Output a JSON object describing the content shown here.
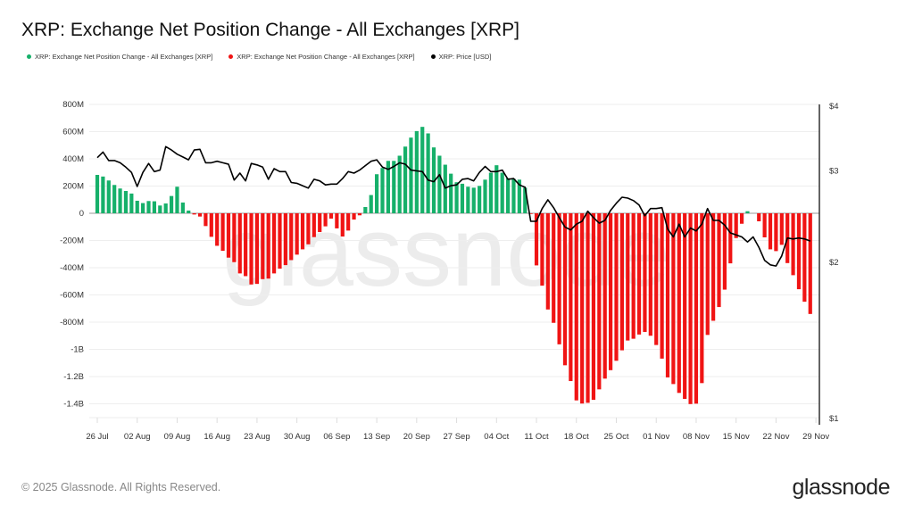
{
  "title": "XRP: Exchange Net Position Change - All Exchanges [XRP]",
  "legend": [
    {
      "label": "XRP: Exchange Net Position Change - All Exchanges [XRP]",
      "color": "#16b06a"
    },
    {
      "label": "XRP: Exchange Net Position Change - All Exchanges [XRP]",
      "color": "#f01414"
    },
    {
      "label": "XRP: Price [USD]",
      "color": "#000000"
    }
  ],
  "footer": "© 2025 Glassnode. All Rights Reserved.",
  "logo": "glassnode",
  "watermark": "glassnode",
  "chart_data": {
    "type": "bar+line",
    "start_date": "26 Jul",
    "x_tick_labels": [
      "26 Jul",
      "02 Aug",
      "09 Aug",
      "16 Aug",
      "23 Aug",
      "30 Aug",
      "06 Sep",
      "13 Sep",
      "20 Sep",
      "27 Sep",
      "04 Oct",
      "11 Oct",
      "18 Oct",
      "25 Oct",
      "01 Nov",
      "08 Nov",
      "15 Nov",
      "22 Nov",
      "29 Nov"
    ],
    "left_axis": {
      "ticks": [
        "800M",
        "600M",
        "400M",
        "200M",
        "0",
        "-200M",
        "-400M",
        "-600M",
        "-800M",
        "-1B",
        "-1.2B",
        "-1.4B"
      ],
      "tick_values": [
        800,
        600,
        400,
        200,
        0,
        -200,
        -400,
        -600,
        -800,
        -1000,
        -1200,
        -1400
      ],
      "unit": "M XRP",
      "range": [
        -1480,
        800
      ]
    },
    "right_axis": {
      "scale": "log",
      "ticks": [
        "$4",
        "$3",
        "$2",
        "$1"
      ],
      "tick_values": [
        4,
        3,
        2,
        1
      ],
      "range": [
        1,
        4
      ]
    },
    "positive_color": "#16b06a",
    "negative_color": "#f01414",
    "price_color": "#000000",
    "net_position_change_millions": [
      282,
      270,
      241,
      208,
      182,
      164,
      145,
      92,
      75,
      90,
      88,
      57,
      72,
      127,
      195,
      79,
      20,
      -9,
      -24,
      -94,
      -173,
      -239,
      -276,
      -326,
      -359,
      -442,
      -462,
      -523,
      -519,
      -484,
      -480,
      -442,
      -407,
      -381,
      -344,
      -304,
      -265,
      -228,
      -175,
      -138,
      -96,
      -39,
      -111,
      -171,
      -127,
      -46,
      -15,
      46,
      134,
      287,
      333,
      385,
      385,
      423,
      490,
      556,
      604,
      635,
      587,
      484,
      423,
      357,
      291,
      228,
      217,
      195,
      188,
      201,
      247,
      298,
      353,
      298,
      258,
      254,
      247,
      188,
      -5,
      -383,
      -532,
      -707,
      -805,
      -963,
      -1117,
      -1233,
      -1375,
      -1398,
      -1393,
      -1371,
      -1294,
      -1215,
      -1153,
      -1084,
      -1007,
      -935,
      -922,
      -891,
      -872,
      -900,
      -968,
      -1068,
      -1206,
      -1255,
      -1320,
      -1364,
      -1402,
      -1399,
      -1248,
      -894,
      -790,
      -689,
      -561,
      -368,
      -182,
      -77,
      15,
      0,
      -59,
      -177,
      -265,
      -278,
      -232,
      -366,
      -455,
      -558,
      -650,
      -740
    ],
    "price_usd": [
      3.17,
      3.25,
      3.13,
      3.13,
      3.1,
      3.04,
      2.97,
      2.79,
      2.97,
      3.09,
      2.98,
      3.0,
      3.33,
      3.28,
      3.22,
      3.18,
      3.14,
      3.28,
      3.29,
      3.1,
      3.1,
      3.12,
      3.1,
      3.08,
      2.87,
      2.96,
      2.86,
      3.09,
      3.07,
      3.04,
      2.88,
      3.02,
      2.98,
      2.98,
      2.84,
      2.83,
      2.8,
      2.77,
      2.88,
      2.86,
      2.81,
      2.82,
      2.82,
      2.89,
      2.98,
      2.96,
      3.0,
      3.06,
      3.12,
      3.14,
      3.04,
      3.01,
      3.05,
      3.1,
      3.08,
      3.0,
      2.99,
      2.98,
      2.87,
      2.85,
      2.94,
      2.77,
      2.8,
      2.81,
      2.88,
      2.89,
      2.86,
      2.97,
      3.05,
      2.98,
      2.98,
      3.0,
      2.88,
      2.89,
      2.81,
      2.78,
      2.39,
      2.39,
      2.53,
      2.63,
      2.54,
      2.43,
      2.33,
      2.3,
      2.36,
      2.39,
      2.5,
      2.43,
      2.37,
      2.4,
      2.51,
      2.59,
      2.66,
      2.65,
      2.62,
      2.57,
      2.45,
      2.53,
      2.53,
      2.54,
      2.31,
      2.23,
      2.36,
      2.23,
      2.32,
      2.29,
      2.36,
      2.53,
      2.4,
      2.4,
      2.35,
      2.27,
      2.25,
      2.23,
      2.18,
      2.23,
      2.13,
      2.01,
      1.97,
      1.96,
      2.05,
      2.22,
      2.21,
      2.22,
      2.21,
      2.19
    ]
  }
}
